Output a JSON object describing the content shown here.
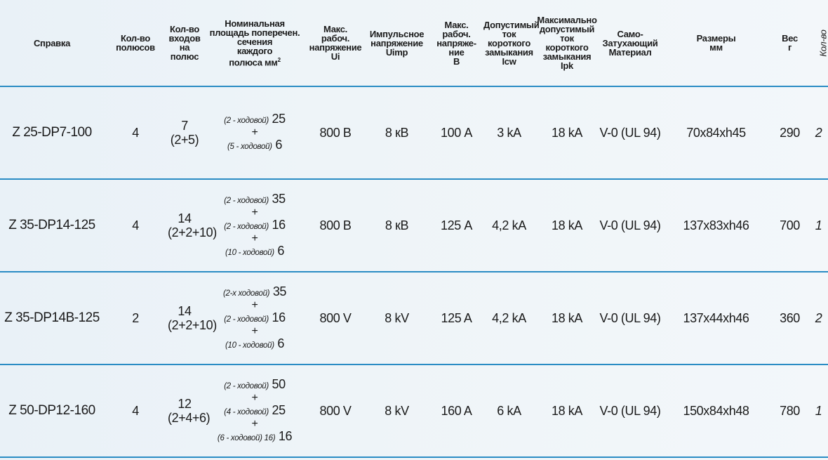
{
  "colors": {
    "rule": "#2a8cc4",
    "background": "#eef4f8",
    "text": "#1a1a1a"
  },
  "headers": {
    "ref": [
      "Справка"
    ],
    "poles": [
      "Кол-во",
      "полюсов"
    ],
    "inputs": [
      "Кол-во",
      "входов",
      "на",
      "полюс"
    ],
    "section": [
      "Номинальная",
      "площадь поперечен.",
      "сечения",
      "каждого",
      "полюса мм",
      "2"
    ],
    "ui": [
      "Макс.",
      "рабоч.",
      "напряжение",
      "Ui"
    ],
    "uimp": [
      "Импульсное",
      "напряжение",
      "Uimp"
    ],
    "current": [
      "Макс.",
      "рабоч.",
      "напряже-",
      "ние",
      "В"
    ],
    "icw": [
      "Допустимый",
      "ток короткого",
      "замыкания",
      "Icw"
    ],
    "ipk": [
      "Максимально",
      "допустимый",
      "ток",
      "короткого",
      "замыкания",
      "Ipk"
    ],
    "material": [
      "Само-",
      "Затухающий",
      "Материал"
    ],
    "dims": [
      "Размеры",
      "мм"
    ],
    "weight": [
      "Вес",
      "г"
    ],
    "qty": "Кол-во"
  },
  "rows": [
    {
      "ref": "Z 25-DP7-100",
      "poles": "4",
      "inputs_total": "7",
      "inputs_split": "(2+5)",
      "section": [
        {
          "note": "(2 - ходовой)",
          "value": "25"
        },
        {
          "note": "(5 - ходовой)",
          "value": "6"
        }
      ],
      "ui": "800 В",
      "uimp": "8 кВ",
      "current": "100 А",
      "icw": "3 kA",
      "ipk": "18 kA",
      "material": "V-0 (UL 94)",
      "dims": "70x84xh45",
      "weight": "290",
      "qty": "2"
    },
    {
      "ref": "Z 35-DP14-125",
      "poles": "4",
      "inputs_total": "14",
      "inputs_split": "(2+2+10)",
      "section": [
        {
          "note": "(2 - ходовой)",
          "value": "35"
        },
        {
          "note": "(2 - ходовой)",
          "value": "16"
        },
        {
          "note": "(10 - ходовой)",
          "value": "6"
        }
      ],
      "ui": "800 В",
      "uimp": "8 кВ",
      "current": "125 А",
      "icw": "4,2 kA",
      "ipk": "18 kA",
      "material": "V-0 (UL 94)",
      "dims": "137x83xh46",
      "weight": "700",
      "qty": "1"
    },
    {
      "ref": "Z 35-DP14B-125",
      "poles": "2",
      "inputs_total": "14",
      "inputs_split": "(2+2+10)",
      "section": [
        {
          "note": "(2-х ходовой)",
          "value": "35"
        },
        {
          "note": "(2 - ходовой)",
          "value": "16"
        },
        {
          "note": "(10 - ходовой)",
          "value": "6"
        }
      ],
      "ui": "800 V",
      "uimp": "8 kV",
      "current": "125 A",
      "icw": "4,2 kA",
      "ipk": "18 kA",
      "material": "V-0 (UL 94)",
      "dims": "137x44xh46",
      "weight": "360",
      "qty": "2"
    },
    {
      "ref": "Z 50-DP12-160",
      "poles": "4",
      "inputs_total": "12",
      "inputs_split": "(2+4+6)",
      "section": [
        {
          "note": "(2 - ходовой)",
          "value": "50"
        },
        {
          "note": "(4 - ходовой)",
          "value": "25"
        },
        {
          "note": "(6 - ходовой) 16)",
          "value": "16"
        }
      ],
      "ui": "800 V",
      "uimp": "8 kV",
      "current": "160 A",
      "icw": "6 kA",
      "ipk": "18 kA",
      "material": "V-0 (UL 94)",
      "dims": "150x84xh48",
      "weight": "780",
      "qty": "1"
    }
  ]
}
